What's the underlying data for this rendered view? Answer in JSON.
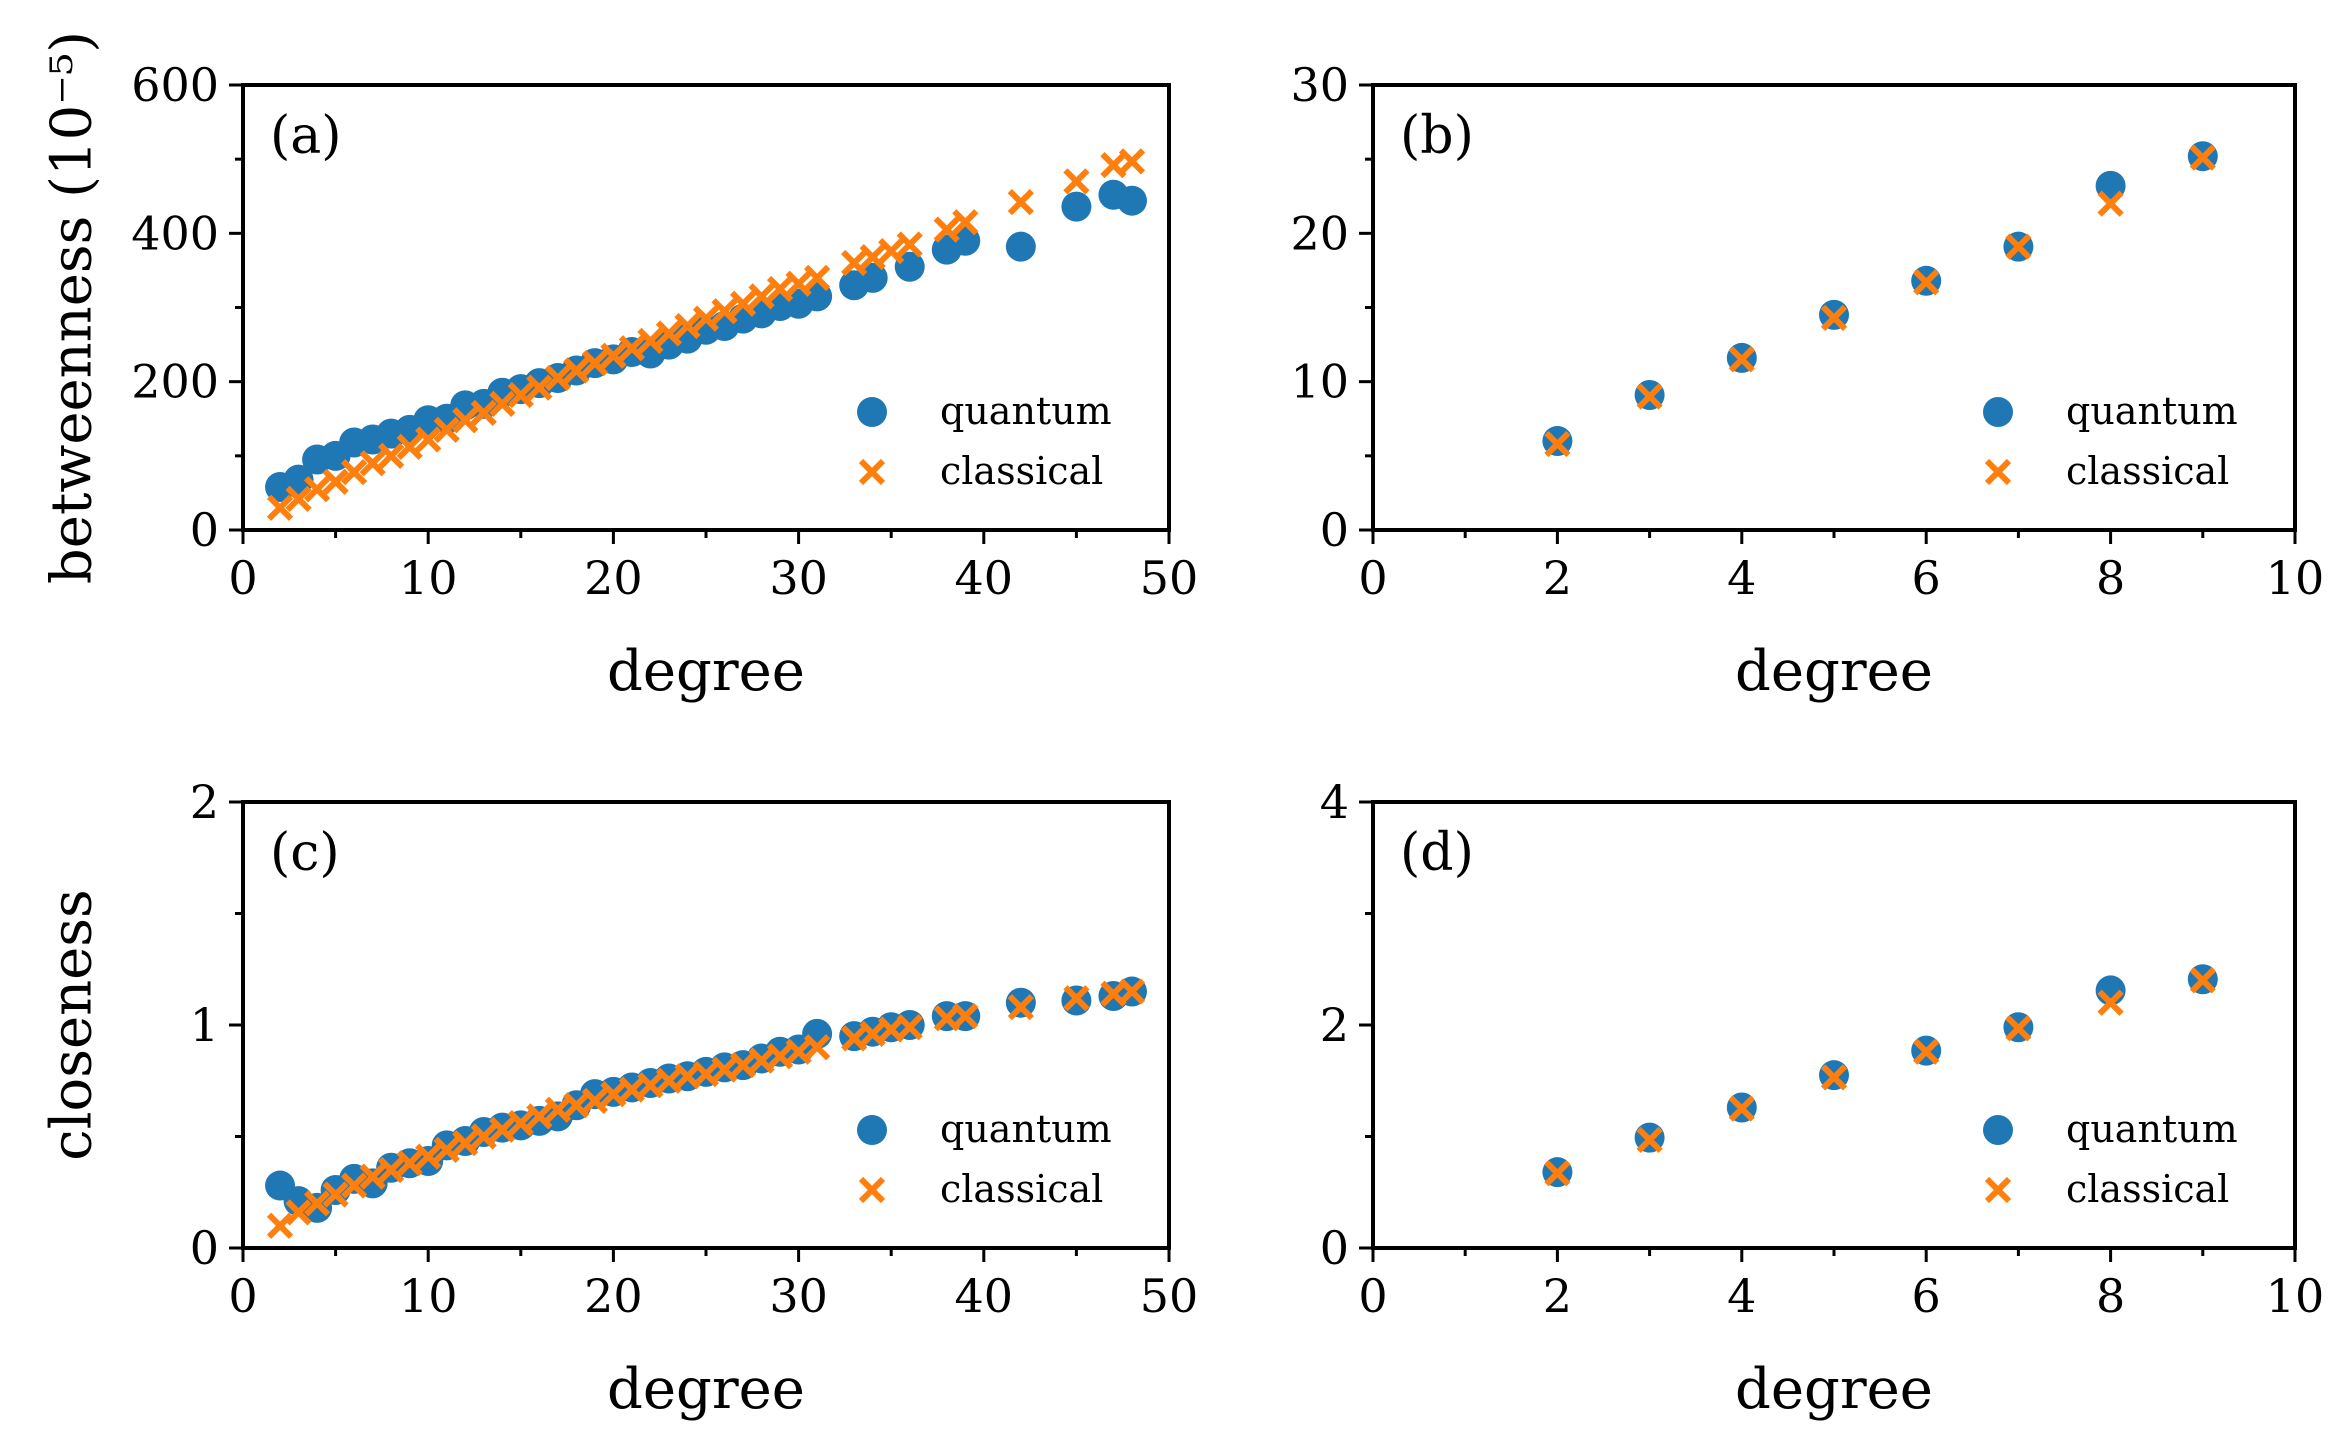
{
  "colors": {
    "quantum": "#1f77b4",
    "classical": "#ff7f0e"
  },
  "legend": {
    "quantum": "quantum",
    "classical": "classical"
  },
  "chart_data": [
    {
      "id": "a",
      "type": "scatter",
      "panel_label": "(a)",
      "xlabel": "degree",
      "ylabel": "betweenness (10⁻⁵)",
      "xlim": [
        0,
        50
      ],
      "ylim": [
        0,
        600
      ],
      "xticks": [
        0,
        10,
        20,
        30,
        40,
        50
      ],
      "xtick_labels": [
        "0",
        "10",
        "20",
        "30",
        "40",
        "50"
      ],
      "xminor": [
        5,
        15,
        25,
        35,
        45
      ],
      "yticks": [
        0,
        200,
        400,
        600
      ],
      "ytick_labels": [
        "0",
        "200",
        "400",
        "600"
      ],
      "yminor": [
        100,
        300,
        500
      ],
      "legend_position": "lower-right",
      "series": [
        {
          "name": "quantum",
          "marker": "circle",
          "x": [
            2,
            3,
            4,
            5,
            6,
            7,
            8,
            9,
            10,
            11,
            12,
            13,
            14,
            15,
            16,
            17,
            18,
            19,
            20,
            21,
            22,
            23,
            24,
            25,
            26,
            27,
            28,
            29,
            30,
            31,
            33,
            34,
            36,
            38,
            39,
            42,
            45,
            47,
            48
          ],
          "y": [
            58,
            68,
            95,
            100,
            118,
            122,
            130,
            135,
            148,
            150,
            168,
            170,
            185,
            190,
            198,
            205,
            215,
            225,
            230,
            240,
            238,
            250,
            258,
            270,
            275,
            285,
            292,
            302,
            305,
            315,
            330,
            340,
            355,
            378,
            390,
            382,
            436,
            452,
            444
          ]
        },
        {
          "name": "classical",
          "marker": "x",
          "x": [
            2,
            3,
            4,
            5,
            6,
            7,
            8,
            9,
            10,
            11,
            12,
            13,
            14,
            15,
            16,
            17,
            18,
            19,
            20,
            21,
            22,
            23,
            24,
            25,
            26,
            27,
            28,
            29,
            30,
            31,
            33,
            34,
            35,
            36,
            38,
            39,
            42,
            45,
            47,
            48
          ],
          "y": [
            30,
            42,
            55,
            65,
            78,
            90,
            100,
            112,
            122,
            135,
            148,
            158,
            170,
            182,
            192,
            205,
            215,
            225,
            235,
            245,
            255,
            265,
            275,
            285,
            295,
            305,
            315,
            325,
            332,
            340,
            360,
            368,
            376,
            385,
            405,
            415,
            442,
            470,
            492,
            497
          ]
        }
      ]
    },
    {
      "id": "b",
      "type": "scatter",
      "panel_label": "(b)",
      "xlabel": "degree",
      "ylabel": "",
      "xlim": [
        0,
        10
      ],
      "ylim": [
        0,
        30
      ],
      "xticks": [
        0,
        2,
        4,
        6,
        8,
        10
      ],
      "xtick_labels": [
        "0",
        "2",
        "4",
        "6",
        "8",
        "10"
      ],
      "xminor": [
        1,
        3,
        5,
        7,
        9
      ],
      "yticks": [
        0,
        10,
        20,
        30
      ],
      "ytick_labels": [
        "0",
        "10",
        "20",
        "30"
      ],
      "yminor": [
        5,
        15,
        25
      ],
      "legend_position": "lower-right",
      "series": [
        {
          "name": "quantum",
          "marker": "circle",
          "x": [
            2,
            3,
            4,
            5,
            6,
            7,
            8,
            9
          ],
          "y": [
            6.0,
            9.1,
            11.6,
            14.5,
            16.8,
            19.1,
            23.2,
            25.2
          ]
        },
        {
          "name": "classical",
          "marker": "x",
          "x": [
            2,
            3,
            4,
            5,
            6,
            7,
            8,
            9
          ],
          "y": [
            5.8,
            9.0,
            11.5,
            14.3,
            16.7,
            19.1,
            22.0,
            25.1
          ]
        }
      ]
    },
    {
      "id": "c",
      "type": "scatter",
      "panel_label": "(c)",
      "xlabel": "degree",
      "ylabel": "closeness",
      "xlim": [
        0,
        50
      ],
      "ylim": [
        0,
        2
      ],
      "xticks": [
        0,
        10,
        20,
        30,
        40,
        50
      ],
      "xtick_labels": [
        "0",
        "10",
        "20",
        "30",
        "40",
        "50"
      ],
      "xminor": [
        5,
        15,
        25,
        35,
        45
      ],
      "yticks": [
        0,
        1,
        2
      ],
      "ytick_labels": [
        "0",
        "1",
        "2"
      ],
      "yminor": [
        0.5,
        1.5
      ],
      "legend_position": "lower-right",
      "series": [
        {
          "name": "quantum",
          "marker": "circle",
          "x": [
            2,
            3,
            4,
            5,
            6,
            7,
            8,
            9,
            10,
            11,
            12,
            13,
            14,
            15,
            16,
            17,
            18,
            19,
            20,
            21,
            22,
            23,
            24,
            25,
            26,
            27,
            28,
            29,
            30,
            31,
            33,
            34,
            35,
            36,
            38,
            39,
            42,
            45,
            47,
            48
          ],
          "y": [
            0.28,
            0.21,
            0.18,
            0.26,
            0.31,
            0.29,
            0.36,
            0.38,
            0.39,
            0.46,
            0.48,
            0.52,
            0.54,
            0.55,
            0.57,
            0.59,
            0.64,
            0.69,
            0.7,
            0.72,
            0.74,
            0.76,
            0.77,
            0.79,
            0.81,
            0.82,
            0.85,
            0.88,
            0.89,
            0.96,
            0.95,
            0.97,
            0.99,
            1.0,
            1.04,
            1.04,
            1.1,
            1.11,
            1.13,
            1.15
          ]
        },
        {
          "name": "classical",
          "marker": "x",
          "x": [
            2,
            3,
            4,
            5,
            6,
            7,
            8,
            9,
            10,
            11,
            12,
            13,
            14,
            15,
            16,
            17,
            18,
            19,
            20,
            21,
            22,
            23,
            24,
            25,
            26,
            27,
            28,
            29,
            30,
            31,
            33,
            34,
            35,
            36,
            38,
            39,
            42,
            45,
            47,
            48
          ],
          "y": [
            0.1,
            0.16,
            0.2,
            0.24,
            0.28,
            0.32,
            0.35,
            0.38,
            0.41,
            0.44,
            0.47,
            0.5,
            0.53,
            0.56,
            0.59,
            0.62,
            0.64,
            0.66,
            0.69,
            0.71,
            0.73,
            0.75,
            0.77,
            0.78,
            0.8,
            0.82,
            0.84,
            0.86,
            0.88,
            0.9,
            0.94,
            0.96,
            0.98,
            0.99,
            1.03,
            1.04,
            1.08,
            1.12,
            1.14,
            1.15
          ]
        }
      ]
    },
    {
      "id": "d",
      "type": "scatter",
      "panel_label": "(d)",
      "xlabel": "degree",
      "ylabel": "",
      "xlim": [
        0,
        10
      ],
      "ylim": [
        0,
        4
      ],
      "xticks": [
        0,
        2,
        4,
        6,
        8,
        10
      ],
      "xtick_labels": [
        "0",
        "2",
        "4",
        "6",
        "8",
        "10"
      ],
      "xminor": [
        1,
        3,
        5,
        7,
        9
      ],
      "yticks": [
        0,
        2,
        4
      ],
      "ytick_labels": [
        "0",
        "2",
        "4"
      ],
      "yminor": [
        1,
        3
      ],
      "legend_position": "lower-right",
      "series": [
        {
          "name": "quantum",
          "marker": "circle",
          "x": [
            2,
            3,
            4,
            5,
            6,
            7,
            8,
            9
          ],
          "y": [
            0.68,
            0.99,
            1.26,
            1.55,
            1.77,
            1.98,
            2.31,
            2.41
          ]
        },
        {
          "name": "classical",
          "marker": "x",
          "x": [
            2,
            3,
            4,
            5,
            6,
            7,
            8,
            9
          ],
          "y": [
            0.67,
            0.97,
            1.25,
            1.53,
            1.76,
            1.97,
            2.2,
            2.4
          ]
        }
      ]
    }
  ]
}
